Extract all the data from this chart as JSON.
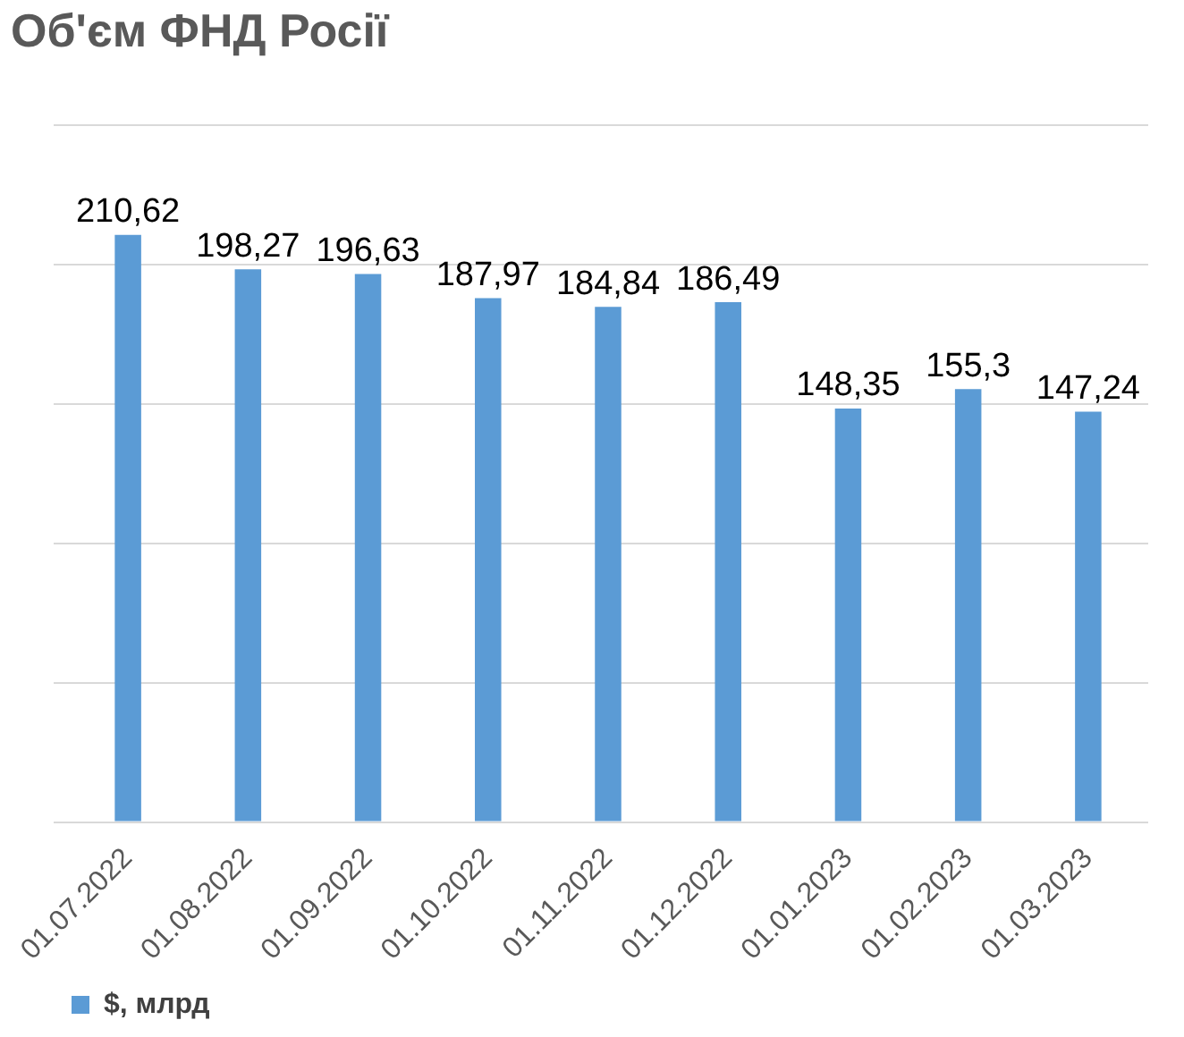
{
  "chart_data": {
    "type": "bar",
    "title": "Об'єм ФНД Росії",
    "categories": [
      "01.07.2022",
      "01.08.2022",
      "01.09.2022",
      "01.10.2022",
      "01.11.2022",
      "01.12.2022",
      "01.01.2023",
      "01.02.2023",
      "01.03.2023"
    ],
    "series": [
      {
        "name": "$, млрд",
        "color": "#5b9bd5",
        "values": [
          210.62,
          198.27,
          196.63,
          187.97,
          184.84,
          186.49,
          148.35,
          155.3,
          147.24
        ],
        "value_labels": [
          "210,62",
          "198,27",
          "196,63",
          "187,97",
          "184,84",
          "186,49",
          "148,35",
          "155,3",
          "147,24"
        ]
      }
    ],
    "grid": "y",
    "legend": "bottom",
    "tick_labels": "x"
  }
}
